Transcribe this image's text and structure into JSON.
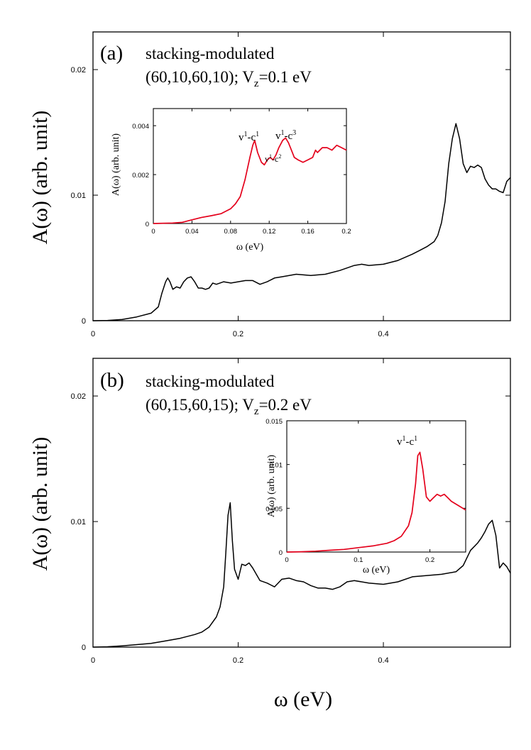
{
  "chart_data": [
    {
      "type": "line",
      "panel_label": "(a)",
      "annotation_line1": "stacking-modulated",
      "annotation_line2": "(60,10,60,10); V",
      "annotation_sub": "z",
      "annotation_tail": "=0.1 eV",
      "ylabel": "A(ω) (arb. unit)",
      "xlim": [
        0,
        0.575
      ],
      "ylim": [
        0,
        0.023
      ],
      "xticks": [
        0,
        0.2,
        0.4
      ],
      "xtick_labels": [
        "0",
        "0.2",
        "0.4"
      ],
      "yticks": [
        0,
        0.01,
        0.02
      ],
      "ytick_labels": [
        "0",
        "0.01",
        "0.02"
      ],
      "series": [
        {
          "name": "main",
          "color": "#000000",
          "x": [
            0,
            0.02,
            0.04,
            0.06,
            0.08,
            0.09,
            0.095,
            0.1,
            0.103,
            0.106,
            0.11,
            0.115,
            0.12,
            0.125,
            0.13,
            0.135,
            0.14,
            0.145,
            0.15,
            0.155,
            0.16,
            0.165,
            0.17,
            0.18,
            0.19,
            0.2,
            0.21,
            0.22,
            0.23,
            0.24,
            0.25,
            0.26,
            0.28,
            0.3,
            0.32,
            0.34,
            0.36,
            0.37,
            0.38,
            0.4,
            0.42,
            0.44,
            0.45,
            0.46,
            0.47,
            0.475,
            0.48,
            0.485,
            0.49,
            0.495,
            0.5,
            0.505,
            0.51,
            0.515,
            0.52,
            0.525,
            0.53,
            0.535,
            0.54,
            0.545,
            0.55,
            0.555,
            0.56,
            0.565,
            0.57,
            0.575
          ],
          "y": [
            0,
            2e-05,
            0.0001,
            0.0003,
            0.0006,
            0.0011,
            0.0022,
            0.0031,
            0.0034,
            0.0031,
            0.0025,
            0.0027,
            0.0026,
            0.0031,
            0.0034,
            0.0035,
            0.0031,
            0.0026,
            0.0026,
            0.0025,
            0.0026,
            0.003,
            0.0029,
            0.0031,
            0.003,
            0.0031,
            0.0032,
            0.0032,
            0.0029,
            0.0031,
            0.0034,
            0.0035,
            0.0037,
            0.0036,
            0.0037,
            0.004,
            0.0044,
            0.0045,
            0.0044,
            0.0045,
            0.0048,
            0.0053,
            0.0056,
            0.0059,
            0.0063,
            0.0068,
            0.0078,
            0.0095,
            0.0125,
            0.0145,
            0.0157,
            0.0145,
            0.0125,
            0.0118,
            0.0123,
            0.0122,
            0.0124,
            0.0122,
            0.0113,
            0.0108,
            0.0105,
            0.0105,
            0.0103,
            0.0102,
            0.0111,
            0.0114
          ]
        }
      ],
      "inset": {
        "xlabel": "ω (eV)",
        "ylabel": "A(ω) (arb. unit)",
        "xlim": [
          0,
          0.2
        ],
        "ylim": [
          0,
          0.0047
        ],
        "xticks": [
          0,
          0.04,
          0.08,
          0.12,
          0.16,
          0.2
        ],
        "xtick_labels": [
          "0",
          "0.04",
          "0.08",
          "0.12",
          "0.16",
          "0.2"
        ],
        "yticks": [
          0,
          0.002,
          0.004
        ],
        "ytick_labels": [
          "0",
          "0.002",
          "0.004"
        ],
        "series": [
          {
            "name": "inset",
            "color": "#e4001b",
            "x": [
              0,
              0.02,
              0.03,
              0.04,
              0.05,
              0.06,
              0.07,
              0.08,
              0.085,
              0.09,
              0.095,
              0.1,
              0.103,
              0.105,
              0.108,
              0.112,
              0.115,
              0.118,
              0.121,
              0.124,
              0.127,
              0.13,
              0.134,
              0.137,
              0.14,
              0.143,
              0.146,
              0.15,
              0.155,
              0.16,
              0.165,
              0.168,
              0.17,
              0.175,
              0.18,
              0.185,
              0.19,
              0.195,
              0.2
            ],
            "y": [
              0,
              2e-05,
              5e-05,
              0.00015,
              0.00025,
              0.00032,
              0.0004,
              0.0006,
              0.0008,
              0.0011,
              0.0018,
              0.0027,
              0.0032,
              0.0034,
              0.0029,
              0.0025,
              0.0024,
              0.0026,
              0.0027,
              0.0026,
              0.0028,
              0.0031,
              0.0034,
              0.0035,
              0.0033,
              0.003,
              0.0027,
              0.0026,
              0.0025,
              0.0026,
              0.0027,
              0.003,
              0.0029,
              0.0031,
              0.0031,
              0.003,
              0.0032,
              0.0031,
              0.003
            ]
          }
        ],
        "peak_labels": [
          {
            "text": "v",
            "sup": "1",
            "mid": "-c",
            "sup2": "1"
          },
          {
            "text": "v",
            "sup": "1",
            "mid": "-c",
            "sup2": "3"
          },
          {
            "text": "v",
            "sup": "1",
            "mid": "-c",
            "sup2": "2"
          }
        ]
      }
    },
    {
      "type": "line",
      "panel_label": "(b)",
      "annotation_line1": "stacking-modulated",
      "annotation_line2": "(60,15,60,15); V",
      "annotation_sub": "z",
      "annotation_tail": "=0.2 eV",
      "ylabel": "A(ω) (arb. unit)",
      "xlabel": "ω (eV)",
      "xlim": [
        0,
        0.575
      ],
      "ylim": [
        0,
        0.023
      ],
      "xticks": [
        0,
        0.2,
        0.4
      ],
      "xtick_labels": [
        "0",
        "0.2",
        "0.4"
      ],
      "yticks": [
        0,
        0.01,
        0.02
      ],
      "ytick_labels": [
        "0",
        "0.01",
        "0.02"
      ],
      "series": [
        {
          "name": "main",
          "color": "#000000",
          "x": [
            0,
            0.02,
            0.04,
            0.06,
            0.08,
            0.1,
            0.12,
            0.14,
            0.15,
            0.16,
            0.17,
            0.175,
            0.18,
            0.183,
            0.186,
            0.189,
            0.192,
            0.195,
            0.2,
            0.205,
            0.21,
            0.215,
            0.22,
            0.225,
            0.23,
            0.24,
            0.25,
            0.26,
            0.27,
            0.28,
            0.29,
            0.3,
            0.31,
            0.32,
            0.33,
            0.34,
            0.35,
            0.36,
            0.38,
            0.4,
            0.42,
            0.44,
            0.46,
            0.48,
            0.5,
            0.51,
            0.52,
            0.53,
            0.535,
            0.54,
            0.545,
            0.55,
            0.555,
            0.56,
            0.565,
            0.57,
            0.575
          ],
          "y": [
            0,
            3e-05,
            0.0001,
            0.0002,
            0.0003,
            0.0005,
            0.0007,
            0.001,
            0.0012,
            0.0016,
            0.0024,
            0.0032,
            0.0048,
            0.0075,
            0.0105,
            0.0115,
            0.0085,
            0.0062,
            0.0054,
            0.0066,
            0.0065,
            0.0067,
            0.0063,
            0.0058,
            0.0053,
            0.0051,
            0.0048,
            0.0054,
            0.0055,
            0.0053,
            0.0052,
            0.0049,
            0.0047,
            0.0047,
            0.0046,
            0.0048,
            0.0052,
            0.0053,
            0.0051,
            0.005,
            0.0052,
            0.0056,
            0.0057,
            0.0058,
            0.006,
            0.0065,
            0.0077,
            0.0083,
            0.0087,
            0.0092,
            0.0098,
            0.0101,
            0.0089,
            0.0063,
            0.0067,
            0.0064,
            0.0059
          ]
        }
      ],
      "inset": {
        "xlabel": "ω (eV)",
        "ylabel": "A(ω) (arb. unit)",
        "xlim": [
          0,
          0.25
        ],
        "ylim": [
          0,
          0.015
        ],
        "xticks": [
          0,
          0.1,
          0.2
        ],
        "xtick_labels": [
          "0",
          "0.1",
          "0.2"
        ],
        "yticks": [
          0,
          0.005,
          0.01,
          0.015
        ],
        "ytick_labels": [
          "0",
          "0.005",
          "0.01",
          "0.015"
        ],
        "series": [
          {
            "name": "inset",
            "color": "#e4001b",
            "x": [
              0,
              0.02,
              0.04,
              0.06,
              0.08,
              0.1,
              0.12,
              0.14,
              0.15,
              0.16,
              0.17,
              0.175,
              0.18,
              0.183,
              0.186,
              0.19,
              0.195,
              0.2,
              0.205,
              0.21,
              0.215,
              0.22,
              0.225,
              0.23,
              0.24,
              0.25
            ],
            "y": [
              0,
              3e-05,
              0.0001,
              0.0002,
              0.0003,
              0.0005,
              0.0007,
              0.001,
              0.0013,
              0.0018,
              0.003,
              0.0045,
              0.0078,
              0.011,
              0.0114,
              0.0095,
              0.0063,
              0.0058,
              0.0062,
              0.0066,
              0.0064,
              0.0066,
              0.0062,
              0.0058,
              0.0053,
              0.0048
            ]
          }
        ],
        "peak_labels": [
          {
            "text": "v",
            "sup": "1",
            "mid": "-c",
            "sup2": "1"
          }
        ]
      }
    }
  ]
}
